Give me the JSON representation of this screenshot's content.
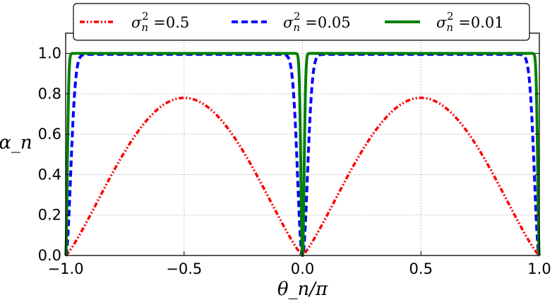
{
  "chart_data": {
    "type": "line",
    "title": "",
    "xlabel": "θ_n/π",
    "ylabel": "α_n",
    "xlim": [
      -1.0,
      1.0
    ],
    "ylim": [
      0.0,
      1.1
    ],
    "xticks": [
      -1.0,
      -0.5,
      0.0,
      0.5,
      1.0
    ],
    "xtick_labels": [
      "−1.0",
      "−0.5",
      "0.0",
      "0.5",
      "1.0"
    ],
    "yticks": [
      0.0,
      0.2,
      0.4,
      0.6,
      0.8,
      1.0
    ],
    "ytick_labels": [
      "0.0",
      "0.2",
      "0.4",
      "0.6",
      "0.8",
      "1.0"
    ],
    "grid": true,
    "legend_position": "top",
    "series": [
      {
        "name": "σ_n² =0.5",
        "legend_prefix": "σ",
        "legend_sup": "2",
        "legend_sub": "n",
        "legend_value": " =0.5",
        "sigma2": 0.5,
        "color": "#ff0000",
        "style": "dashdot"
      },
      {
        "name": "σ_n² =0.05",
        "legend_prefix": "σ",
        "legend_sup": "2",
        "legend_sub": "n",
        "legend_value": " =0.05",
        "sigma2": 0.05,
        "color": "#0000ff",
        "style": "dashed"
      },
      {
        "name": "σ_n² =0.01",
        "legend_prefix": "σ",
        "legend_sup": "2",
        "legend_sub": "n",
        "legend_value": " =0.01",
        "sigma2": 0.01,
        "color": "#008000",
        "style": "solid"
      }
    ]
  }
}
